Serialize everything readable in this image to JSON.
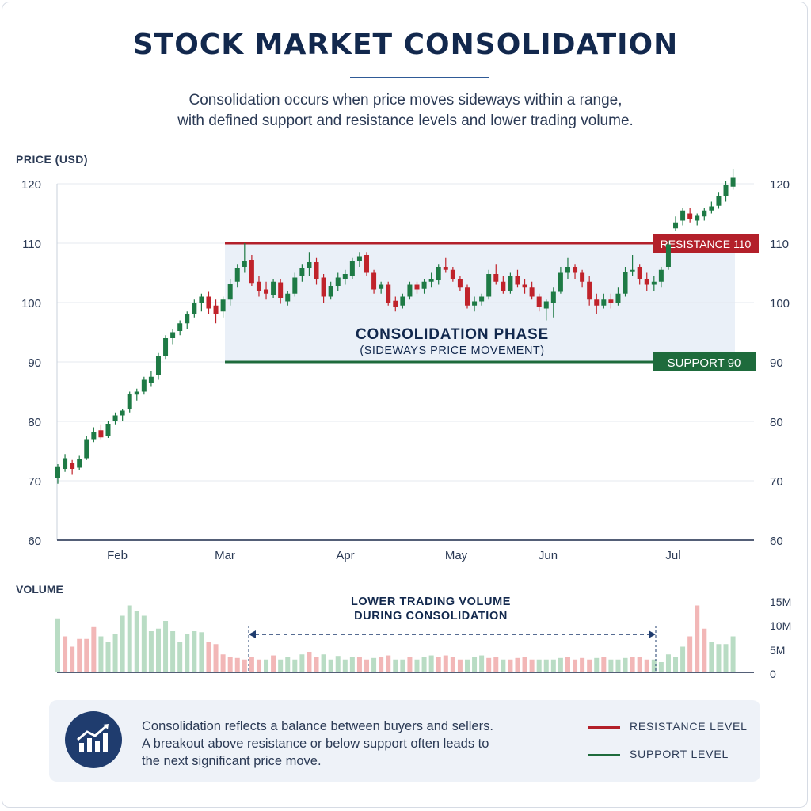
{
  "title": "STOCK MARKET CONSOLIDATION",
  "subtitle": [
    "Consolidation occurs when price moves sideways within a range,",
    "with defined support and resistance levels and lower trading volume."
  ],
  "chart_data": {
    "type": "candlestick",
    "ylabel": "PRICE (USD)",
    "ylim": [
      60,
      122
    ],
    "yticks": [
      "120",
      "110",
      "100",
      "90",
      "80",
      "70",
      "60"
    ],
    "xticks": [
      "Feb",
      "Mar",
      "Apr",
      "May",
      "Jun",
      "Jul"
    ],
    "colors": {
      "up": "#1e7a45",
      "down": "#c0232b",
      "resistance": "#b3202a",
      "support": "#1e6b3c",
      "zone": "#eaf0f8"
    },
    "resistance": {
      "value": 110,
      "label": "RESISTANCE 110"
    },
    "support": {
      "value": 90,
      "label": "SUPPORT 90"
    },
    "zone_label": {
      "title": "CONSOLIDATION PHASE",
      "subtitle": "(SIDEWAYS PRICE MOVEMENT)"
    },
    "candles": [
      {
        "o": 70.5,
        "h": 72.8,
        "l": 69.5,
        "c": 72.3
      },
      {
        "o": 72.0,
        "h": 74.5,
        "l": 71.5,
        "c": 73.8
      },
      {
        "o": 73.0,
        "h": 73.5,
        "l": 71.0,
        "c": 72.0
      },
      {
        "o": 72.2,
        "h": 74.2,
        "l": 71.8,
        "c": 73.6
      },
      {
        "o": 73.8,
        "h": 77.5,
        "l": 73.5,
        "c": 77.0
      },
      {
        "o": 77.0,
        "h": 79.0,
        "l": 76.5,
        "c": 78.2
      },
      {
        "o": 78.5,
        "h": 79.5,
        "l": 77.0,
        "c": 77.3
      },
      {
        "o": 77.5,
        "h": 80.0,
        "l": 77.2,
        "c": 79.6
      },
      {
        "o": 80.0,
        "h": 81.5,
        "l": 79.5,
        "c": 81.0
      },
      {
        "o": 81.0,
        "h": 82.0,
        "l": 80.0,
        "c": 81.8
      },
      {
        "o": 82.0,
        "h": 85.0,
        "l": 81.5,
        "c": 84.6
      },
      {
        "o": 84.5,
        "h": 85.5,
        "l": 83.5,
        "c": 85.0
      },
      {
        "o": 85.0,
        "h": 87.5,
        "l": 84.5,
        "c": 87.0
      },
      {
        "o": 86.5,
        "h": 88.5,
        "l": 85.8,
        "c": 87.5
      },
      {
        "o": 87.8,
        "h": 91.5,
        "l": 87.0,
        "c": 91.0
      },
      {
        "o": 91.0,
        "h": 94.5,
        "l": 90.5,
        "c": 94.0
      },
      {
        "o": 94.0,
        "h": 95.5,
        "l": 93.0,
        "c": 95.0
      },
      {
        "o": 95.2,
        "h": 97.0,
        "l": 94.5,
        "c": 96.5
      },
      {
        "o": 96.5,
        "h": 98.5,
        "l": 95.5,
        "c": 98.0
      },
      {
        "o": 98.0,
        "h": 100.5,
        "l": 97.5,
        "c": 100.0
      },
      {
        "o": 100.0,
        "h": 101.5,
        "l": 98.5,
        "c": 101.0
      },
      {
        "o": 101.0,
        "h": 101.8,
        "l": 98.0,
        "c": 99.0
      },
      {
        "o": 99.5,
        "h": 100.5,
        "l": 96.5,
        "c": 98.0
      },
      {
        "o": 98.5,
        "h": 101.0,
        "l": 97.5,
        "c": 100.5
      },
      {
        "o": 100.5,
        "h": 104.0,
        "l": 99.5,
        "c": 103.2
      },
      {
        "o": 103.5,
        "h": 106.5,
        "l": 102.5,
        "c": 105.8
      },
      {
        "o": 106.0,
        "h": 110.0,
        "l": 105.0,
        "c": 107.0
      },
      {
        "o": 107.2,
        "h": 108.0,
        "l": 102.8,
        "c": 103.3
      },
      {
        "o": 103.5,
        "h": 104.5,
        "l": 101.0,
        "c": 102.0
      },
      {
        "o": 102.2,
        "h": 103.5,
        "l": 100.5,
        "c": 101.5
      },
      {
        "o": 101.3,
        "h": 104.0,
        "l": 100.8,
        "c": 103.5
      },
      {
        "o": 103.4,
        "h": 104.0,
        "l": 99.8,
        "c": 100.8
      },
      {
        "o": 100.2,
        "h": 102.0,
        "l": 99.5,
        "c": 101.5
      },
      {
        "o": 101.5,
        "h": 105.0,
        "l": 101.0,
        "c": 104.2
      },
      {
        "o": 104.5,
        "h": 106.5,
        "l": 103.5,
        "c": 105.8
      },
      {
        "o": 105.8,
        "h": 108.5,
        "l": 104.5,
        "c": 106.8
      },
      {
        "o": 106.8,
        "h": 107.5,
        "l": 103.0,
        "c": 104.0
      },
      {
        "o": 104.2,
        "h": 104.8,
        "l": 100.0,
        "c": 101.0
      },
      {
        "o": 101.0,
        "h": 103.5,
        "l": 100.5,
        "c": 102.8
      },
      {
        "o": 102.8,
        "h": 105.0,
        "l": 102.0,
        "c": 104.2
      },
      {
        "o": 104.0,
        "h": 105.5,
        "l": 103.0,
        "c": 104.8
      },
      {
        "o": 104.5,
        "h": 107.5,
        "l": 104.0,
        "c": 107.0
      },
      {
        "o": 107.0,
        "h": 108.5,
        "l": 106.0,
        "c": 107.8
      },
      {
        "o": 108.0,
        "h": 108.5,
        "l": 104.5,
        "c": 105.0
      },
      {
        "o": 105.0,
        "h": 105.5,
        "l": 101.5,
        "c": 102.2
      },
      {
        "o": 102.3,
        "h": 103.5,
        "l": 101.5,
        "c": 103.0
      },
      {
        "o": 103.0,
        "h": 103.5,
        "l": 99.5,
        "c": 100.0
      },
      {
        "o": 100.3,
        "h": 101.0,
        "l": 98.5,
        "c": 99.2
      },
      {
        "o": 99.5,
        "h": 101.5,
        "l": 99.0,
        "c": 101.0
      },
      {
        "o": 101.0,
        "h": 103.5,
        "l": 100.5,
        "c": 103.0
      },
      {
        "o": 103.0,
        "h": 103.5,
        "l": 101.5,
        "c": 102.2
      },
      {
        "o": 102.3,
        "h": 104.0,
        "l": 101.5,
        "c": 103.5
      },
      {
        "o": 103.5,
        "h": 105.0,
        "l": 102.5,
        "c": 104.0
      },
      {
        "o": 103.8,
        "h": 106.5,
        "l": 103.0,
        "c": 106.0
      },
      {
        "o": 106.0,
        "h": 107.5,
        "l": 105.0,
        "c": 105.5
      },
      {
        "o": 105.5,
        "h": 106.0,
        "l": 103.5,
        "c": 104.0
      },
      {
        "o": 104.0,
        "h": 104.5,
        "l": 102.0,
        "c": 102.5
      },
      {
        "o": 102.5,
        "h": 103.0,
        "l": 99.0,
        "c": 99.5
      },
      {
        "o": 99.5,
        "h": 101.0,
        "l": 98.5,
        "c": 100.2
      },
      {
        "o": 100.2,
        "h": 101.5,
        "l": 99.5,
        "c": 101.0
      },
      {
        "o": 101.0,
        "h": 105.5,
        "l": 100.5,
        "c": 104.8
      },
      {
        "o": 104.8,
        "h": 106.5,
        "l": 103.0,
        "c": 103.5
      },
      {
        "o": 103.5,
        "h": 104.5,
        "l": 101.5,
        "c": 102.0
      },
      {
        "o": 102.0,
        "h": 105.0,
        "l": 101.5,
        "c": 104.5
      },
      {
        "o": 104.5,
        "h": 105.5,
        "l": 102.5,
        "c": 103.0
      },
      {
        "o": 103.0,
        "h": 104.0,
        "l": 101.5,
        "c": 102.5
      },
      {
        "o": 102.5,
        "h": 103.5,
        "l": 100.5,
        "c": 101.0
      },
      {
        "o": 101.0,
        "h": 101.5,
        "l": 98.5,
        "c": 99.3
      },
      {
        "o": 99.0,
        "h": 100.5,
        "l": 97.0,
        "c": 100.2
      },
      {
        "o": 100.0,
        "h": 102.5,
        "l": 97.5,
        "c": 101.8
      },
      {
        "o": 101.8,
        "h": 106.0,
        "l": 101.5,
        "c": 105.0
      },
      {
        "o": 105.0,
        "h": 107.5,
        "l": 104.0,
        "c": 106.0
      },
      {
        "o": 106.0,
        "h": 106.5,
        "l": 104.0,
        "c": 105.0
      },
      {
        "o": 105.0,
        "h": 105.5,
        "l": 102.5,
        "c": 103.5
      },
      {
        "o": 103.5,
        "h": 104.5,
        "l": 99.5,
        "c": 100.5
      },
      {
        "o": 100.5,
        "h": 101.5,
        "l": 98.0,
        "c": 99.5
      },
      {
        "o": 99.5,
        "h": 101.5,
        "l": 99.0,
        "c": 100.5
      },
      {
        "o": 100.5,
        "h": 101.5,
        "l": 99.0,
        "c": 100.0
      },
      {
        "o": 100.0,
        "h": 102.5,
        "l": 99.5,
        "c": 101.5
      },
      {
        "o": 101.5,
        "h": 106.0,
        "l": 101.0,
        "c": 105.2
      },
      {
        "o": 105.5,
        "h": 108.0,
        "l": 104.5,
        "c": 105.5
      },
      {
        "o": 106.0,
        "h": 106.5,
        "l": 103.0,
        "c": 104.0
      },
      {
        "o": 104.0,
        "h": 105.0,
        "l": 102.0,
        "c": 103.0
      },
      {
        "o": 103.0,
        "h": 104.5,
        "l": 102.0,
        "c": 103.5
      },
      {
        "o": 103.5,
        "h": 106.0,
        "l": 102.5,
        "c": 105.5
      },
      {
        "o": 106.0,
        "h": 110.5,
        "l": 105.5,
        "c": 109.8
      },
      {
        "o": 112.5,
        "h": 114.5,
        "l": 112.0,
        "c": 113.5
      },
      {
        "o": 113.8,
        "h": 116.0,
        "l": 113.0,
        "c": 115.5
      },
      {
        "o": 115.0,
        "h": 116.0,
        "l": 113.5,
        "c": 114.0
      },
      {
        "o": 113.8,
        "h": 115.0,
        "l": 113.0,
        "c": 114.6
      },
      {
        "o": 114.5,
        "h": 116.0,
        "l": 113.8,
        "c": 115.5
      },
      {
        "o": 115.5,
        "h": 117.0,
        "l": 115.0,
        "c": 116.2
      },
      {
        "o": 116.3,
        "h": 118.5,
        "l": 115.8,
        "c": 118.0
      },
      {
        "o": 118.0,
        "h": 120.5,
        "l": 117.0,
        "c": 119.8
      },
      {
        "o": 119.5,
        "h": 122.5,
        "l": 119.0,
        "c": 121.0
      }
    ],
    "volume": {
      "label": "VOLUME",
      "ticks": [
        "15M",
        "10M",
        "5M",
        "0"
      ],
      "ylim": [
        0,
        15
      ],
      "annotation": [
        "LOWER TRADING VOLUME",
        "DURING CONSOLIDATION"
      ],
      "values": [
        10.5,
        7.0,
        5.0,
        6.5,
        6.5,
        8.8,
        7.0,
        6.0,
        7.5,
        11.0,
        13.0,
        12.0,
        11.0,
        8.0,
        8.5,
        10.0,
        8.0,
        6.0,
        7.5,
        8.0,
        7.8,
        6.0,
        5.5,
        3.5,
        3.0,
        2.8,
        2.5,
        3.0,
        2.5,
        2.5,
        3.3,
        2.5,
        3.0,
        2.5,
        3.5,
        4.0,
        3.0,
        3.5,
        2.5,
        3.2,
        2.5,
        3.0,
        3.0,
        2.5,
        2.8,
        3.0,
        3.3,
        2.5,
        2.5,
        3.0,
        2.5,
        3.0,
        3.3,
        3.0,
        3.3,
        3.0,
        2.5,
        2.5,
        3.0,
        3.3,
        2.8,
        3.0,
        2.5,
        2.5,
        2.8,
        3.0,
        2.5,
        2.5,
        2.5,
        2.5,
        2.8,
        3.0,
        2.5,
        2.8,
        2.5,
        2.8,
        3.0,
        2.5,
        2.5,
        2.8,
        3.0,
        3.0,
        2.5,
        2.5,
        2.0,
        3.5,
        3.0,
        5.0,
        7.0,
        13.0,
        8.5,
        6.0,
        5.5,
        5.5,
        7.0
      ],
      "up": [
        1,
        0,
        0,
        0,
        0,
        0,
        1,
        1,
        1,
        1,
        1,
        1,
        1,
        1,
        1,
        1,
        1,
        1,
        1,
        1,
        1,
        0,
        0,
        0,
        0,
        0,
        0,
        0,
        0,
        1,
        0,
        1,
        1,
        1,
        1,
        0,
        0,
        1,
        1,
        1,
        1,
        1,
        0,
        0,
        1,
        0,
        0,
        1,
        1,
        0,
        1,
        1,
        1,
        0,
        0,
        0,
        0,
        1,
        1,
        1,
        0,
        0,
        1,
        0,
        0,
        0,
        0,
        1,
        1,
        1,
        1,
        0,
        0,
        0,
        0,
        1,
        0,
        1,
        1,
        1,
        0,
        0,
        0,
        1,
        1,
        1,
        1,
        1,
        0,
        0,
        0,
        1,
        1,
        1,
        1
      ]
    }
  },
  "footer": {
    "icon": "chart-growth-icon",
    "text": [
      "Consolidation reflects a balance between buyers and sellers.",
      "A breakout above resistance or below support often leads to",
      "the next significant price move."
    ],
    "legend": [
      {
        "label": "RESISTANCE LEVEL",
        "color": "#b3202a"
      },
      {
        "label": "SUPPORT LEVEL",
        "color": "#1e6b3c"
      }
    ]
  }
}
